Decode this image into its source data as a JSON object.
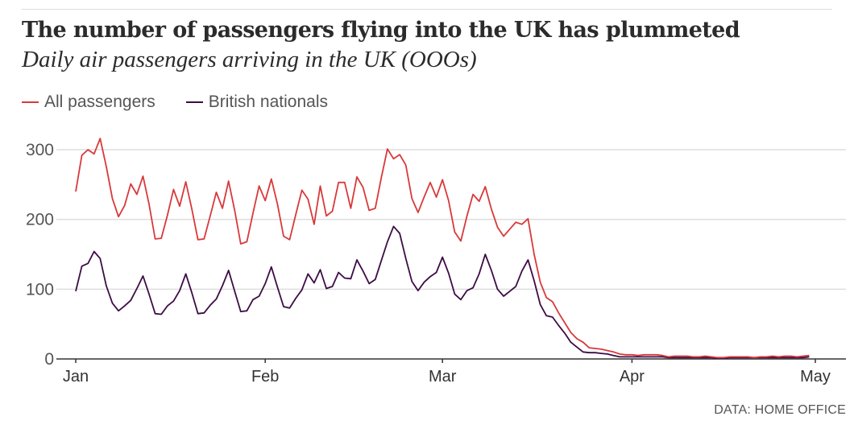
{
  "chart_data": {
    "type": "line",
    "title": "The number of passengers flying into the UK has plummeted",
    "subtitle": "Daily air passengers arriving in the UK (OOOs)",
    "source": "DATA: HOME OFFICE",
    "xlabel": "",
    "ylabel": "",
    "x_start": "Jan 1",
    "x_unit": "day",
    "x_ticks": [
      {
        "label": "Jan",
        "day": 0
      },
      {
        "label": "Feb",
        "day": 31
      },
      {
        "label": "Mar",
        "day": 60
      },
      {
        "label": "Apr",
        "day": 91
      },
      {
        "label": "May",
        "day": 121
      }
    ],
    "y_ticks": [
      0,
      100,
      200,
      300
    ],
    "ylim": [
      0,
      330
    ],
    "xlim": [
      0,
      121
    ],
    "grid": true,
    "legend_position": "top-left",
    "series": [
      {
        "name": "All passengers",
        "color": "#d9393a",
        "values": [
          240,
          292,
          300,
          294,
          316,
          276,
          230,
          204,
          220,
          251,
          236,
          262,
          222,
          172,
          173,
          206,
          243,
          219,
          254,
          215,
          171,
          172,
          205,
          239,
          216,
          255,
          213,
          165,
          168,
          209,
          248,
          227,
          258,
          222,
          176,
          171,
          207,
          242,
          229,
          193,
          248,
          205,
          212,
          253,
          253,
          216,
          261,
          246,
          213,
          216,
          260,
          301,
          287,
          293,
          278,
          230,
          210,
          232,
          253,
          232,
          257,
          227,
          182,
          169,
          205,
          236,
          226,
          247,
          215,
          189,
          176,
          186,
          196,
          193,
          201,
          150,
          110,
          88,
          82,
          66,
          52,
          38,
          29,
          24,
          16,
          15,
          14,
          12,
          10,
          7,
          6,
          6,
          5,
          6,
          6,
          6,
          5,
          3,
          4,
          4,
          4,
          3,
          3,
          4,
          3,
          2,
          2,
          3,
          3,
          3,
          3,
          2,
          3,
          3,
          4,
          3,
          4,
          4,
          3,
          4,
          5
        ]
      },
      {
        "name": "British nationals",
        "color": "#3d0c45",
        "values": [
          97,
          133,
          137,
          154,
          144,
          105,
          80,
          69,
          76,
          84,
          101,
          119,
          93,
          65,
          64,
          76,
          83,
          98,
          122,
          95,
          65,
          66,
          77,
          86,
          105,
          127,
          97,
          68,
          69,
          85,
          90,
          108,
          132,
          103,
          75,
          73,
          87,
          99,
          122,
          109,
          128,
          101,
          104,
          124,
          116,
          115,
          142,
          126,
          108,
          114,
          141,
          168,
          190,
          180,
          144,
          111,
          98,
          110,
          118,
          124,
          146,
          123,
          93,
          85,
          98,
          102,
          122,
          150,
          127,
          100,
          90,
          97,
          104,
          126,
          142,
          112,
          78,
          62,
          60,
          48,
          37,
          24,
          17,
          10,
          9,
          9,
          8,
          7,
          5,
          3,
          3,
          3,
          3,
          3,
          3,
          3,
          3,
          2,
          2,
          2,
          2,
          2,
          2,
          2,
          2,
          1,
          1,
          2,
          2,
          2,
          2,
          2,
          2,
          2,
          2,
          2,
          2,
          2,
          2,
          2,
          3
        ]
      }
    ]
  }
}
